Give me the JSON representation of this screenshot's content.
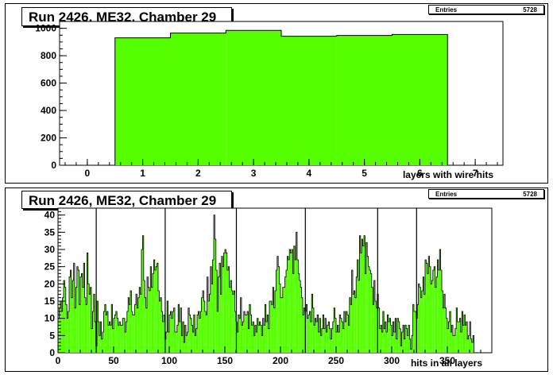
{
  "charts": [
    {
      "title": "Run 2426, ME32, Chamber 29",
      "stats": {
        "label": "Entries",
        "value": "5728"
      },
      "xlabel": "layers with wire hits"
    },
    {
      "title": "Run 2426, ME32, Chamber 29",
      "stats": {
        "label": "Entries",
        "value": "5728"
      },
      "xlabel": "hits in all layers"
    }
  ],
  "colors": {
    "fill": "#55ff00",
    "line": "#000000"
  },
  "chart_data": [
    {
      "type": "bar",
      "title": "Run 2426, ME32, Chamber 29",
      "xlabel": "layers with wire hits",
      "ylabel": "",
      "xlim": [
        -0.5,
        7.5
      ],
      "ylim": [
        0,
        1050
      ],
      "x_ticks": [
        0,
        1,
        2,
        3,
        4,
        5,
        6,
        7
      ],
      "y_ticks": [
        0,
        200,
        400,
        600,
        800,
        1000
      ],
      "bin_edges": [
        0.5,
        1.5,
        2.5,
        3.5,
        4.5,
        5.5,
        6.5
      ],
      "values": [
        930,
        965,
        985,
        942,
        948,
        955
      ]
    },
    {
      "type": "bar",
      "title": "Run 2426, ME32, Chamber 29",
      "xlabel": "hits in all layers",
      "ylabel": "",
      "xlim": [
        0,
        390
      ],
      "ylim": [
        0,
        42
      ],
      "x_ticks": [
        0,
        50,
        100,
        150,
        200,
        250,
        300,
        350
      ],
      "y_ticks": [
        0,
        5,
        10,
        15,
        20,
        25,
        30,
        35,
        40
      ],
      "bin_width": 1,
      "values": [
        10,
        13,
        15,
        12,
        16,
        21,
        19,
        14,
        10,
        12,
        22,
        24,
        16,
        21,
        26,
        13,
        19,
        25,
        24,
        14,
        22,
        23,
        19,
        26,
        16,
        14,
        29,
        20,
        17,
        19,
        7,
        12,
        17,
        9,
        2,
        15,
        9,
        5,
        9,
        4,
        6,
        12,
        14,
        11,
        12,
        8,
        9,
        8,
        14,
        7,
        10,
        11,
        12,
        10,
        8,
        9,
        8,
        8,
        10,
        10,
        6,
        9,
        12,
        16,
        14,
        18,
        12,
        11,
        11,
        14,
        17,
        13,
        16,
        19,
        17,
        30,
        34,
        21,
        16,
        13,
        22,
        19,
        18,
        25,
        19,
        23,
        27,
        24,
        25,
        26,
        18,
        15,
        16,
        12,
        9,
        11,
        4,
        6,
        15,
        6,
        11,
        12,
        10,
        12,
        13,
        6,
        6,
        8,
        14,
        9,
        13,
        5,
        9,
        3,
        8,
        5,
        6,
        13,
        11,
        10,
        8,
        6,
        11,
        5,
        7,
        11,
        12,
        10,
        12,
        16,
        18,
        15,
        12,
        11,
        22,
        15,
        17,
        25,
        20,
        27,
        40,
        33,
        24,
        12,
        22,
        26,
        17,
        28,
        25,
        29,
        30,
        29,
        24,
        25,
        19,
        21,
        18,
        17,
        18,
        12,
        9,
        6,
        11,
        10,
        16,
        8,
        9,
        12,
        11,
        11,
        12,
        7,
        14,
        11,
        8,
        9,
        5,
        8,
        6,
        10,
        8,
        9,
        8,
        5,
        10,
        8,
        14,
        9,
        11,
        7,
        15,
        15,
        14,
        19,
        13,
        18,
        24,
        28,
        25,
        20,
        16,
        16,
        19,
        19,
        22,
        24,
        28,
        27,
        30,
        29,
        30,
        23,
        31,
        27,
        35,
        27,
        23,
        21,
        19,
        16,
        11,
        13,
        12,
        14,
        10,
        11,
        12,
        9,
        17,
        13,
        8,
        10,
        9,
        11,
        6,
        10,
        5,
        7,
        11,
        7,
        10,
        6,
        8,
        9,
        7,
        4,
        7,
        9,
        13,
        10,
        6,
        8,
        6,
        11,
        10,
        9,
        7,
        12,
        9,
        12,
        11,
        8,
        16,
        14,
        24,
        17,
        18,
        16,
        22,
        27,
        21,
        34,
        29,
        33,
        31,
        34,
        23,
        32,
        28,
        25,
        24,
        23,
        19,
        14,
        21,
        15,
        13,
        17,
        13,
        7,
        8,
        6,
        12,
        7,
        9,
        6,
        11,
        9,
        10,
        8,
        5,
        9,
        6,
        10,
        4,
        10,
        9,
        7,
        2,
        6,
        8,
        4,
        8,
        7,
        5,
        8,
        4,
        1,
        5,
        14,
        12,
        12,
        10,
        14,
        20,
        19,
        16,
        18,
        22,
        17,
        27,
        26,
        23,
        28,
        25,
        20,
        21,
        24,
        25,
        19,
        22,
        27,
        24,
        30,
        24,
        18,
        13,
        17,
        13,
        10,
        7,
        9,
        12,
        6,
        8,
        5,
        5,
        7,
        13,
        9,
        9,
        10,
        6,
        12,
        8,
        11,
        8,
        9,
        4,
        5,
        9,
        4,
        3,
        5
      ],
      "spikes": [
        [
          34,
          42
        ],
        [
          96,
          42
        ],
        [
          160,
          42
        ],
        [
          222,
          42
        ],
        [
          287,
          42
        ],
        [
          322,
          42
        ]
      ]
    }
  ]
}
